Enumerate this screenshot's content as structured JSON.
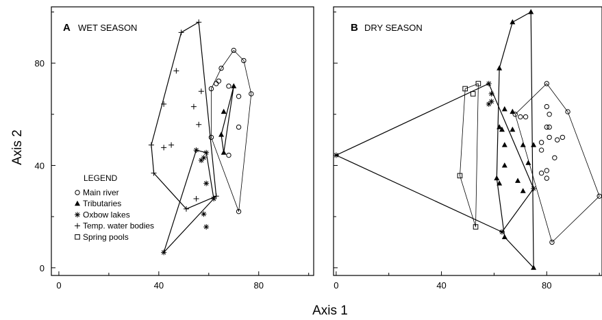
{
  "chart_data": [
    {
      "type": "scatter",
      "panel_letter": "A",
      "title": "WET SEASON",
      "xlabel": "Axis 1",
      "ylabel": "Axis 2",
      "xlim": [
        -3,
        102
      ],
      "ylim": [
        -3,
        102
      ],
      "xticks": [
        0,
        40,
        80
      ],
      "yticks": [
        0,
        40,
        80
      ],
      "legend": {
        "title": "LEGEND",
        "position": "lower-left",
        "entries": [
          {
            "marker": "circle",
            "label": "Main river"
          },
          {
            "marker": "triangle",
            "label": "Tributaries"
          },
          {
            "marker": "asterisk",
            "label": "Oxbow lakes"
          },
          {
            "marker": "plus",
            "label": "Temp. water bodies"
          },
          {
            "marker": "square",
            "label": "Spring pools"
          }
        ]
      },
      "series": [
        {
          "name": "Main river",
          "marker": "circle",
          "points": [
            [
              70,
              85
            ],
            [
              74,
              81
            ],
            [
              65,
              78
            ],
            [
              63,
              72
            ],
            [
              64,
              73
            ],
            [
              61,
              70
            ],
            [
              68,
              71
            ],
            [
              72,
              67
            ],
            [
              77,
              68
            ],
            [
              72,
              55
            ],
            [
              61,
              51
            ],
            [
              68,
              44
            ],
            [
              72,
              22
            ]
          ],
          "hull": [
            [
              70,
              85
            ],
            [
              74,
              81
            ],
            [
              77,
              68
            ],
            [
              72,
              22
            ],
            [
              61,
              51
            ],
            [
              61,
              70
            ],
            [
              65,
              78
            ]
          ]
        },
        {
          "name": "Tributaries",
          "marker": "triangle",
          "points": [
            [
              70,
              71
            ],
            [
              66,
              61
            ],
            [
              65,
              52
            ],
            [
              66,
              45
            ]
          ],
          "hull": [
            [
              70,
              71
            ],
            [
              66,
              45
            ],
            [
              65,
              52
            ]
          ]
        },
        {
          "name": "Oxbow lakes",
          "marker": "asterisk",
          "points": [
            [
              55,
              46
            ],
            [
              59,
              45
            ],
            [
              58,
              43
            ],
            [
              57,
              42
            ],
            [
              59,
              33
            ],
            [
              58,
              21
            ],
            [
              62,
              27
            ],
            [
              59,
              16
            ],
            [
              42,
              6
            ]
          ],
          "hull": [
            [
              55,
              46
            ],
            [
              59,
              45
            ],
            [
              62,
              27
            ],
            [
              42,
              6
            ]
          ]
        },
        {
          "name": "Temp. water bodies",
          "marker": "plus",
          "points": [
            [
              56,
              96
            ],
            [
              49,
              92
            ],
            [
              47,
              77
            ],
            [
              42,
              64
            ],
            [
              57,
              69
            ],
            [
              54,
              63
            ],
            [
              56,
              56
            ],
            [
              37,
              48
            ],
            [
              42,
              47
            ],
            [
              45,
              48
            ],
            [
              38,
              37
            ],
            [
              55,
              27
            ],
            [
              51,
              23
            ],
            [
              63,
              28
            ]
          ],
          "hull": [
            [
              56,
              96
            ],
            [
              63,
              28
            ],
            [
              51,
              23
            ],
            [
              38,
              37
            ],
            [
              37,
              48
            ],
            [
              49,
              92
            ]
          ]
        }
      ]
    },
    {
      "type": "scatter",
      "panel_letter": "B",
      "title": "DRY SEASON",
      "xlabel": "Axis 1",
      "ylabel": "",
      "xlim": [
        -1,
        101
      ],
      "ylim": [
        -3,
        102
      ],
      "xticks": [
        0,
        40,
        80
      ],
      "yticks": [
        0,
        40,
        80
      ],
      "series": [
        {
          "name": "Main river",
          "marker": "circle",
          "points": [
            [
              80,
              72
            ],
            [
              88,
              61
            ],
            [
              80,
              63
            ],
            [
              81,
              60
            ],
            [
              72,
              59
            ],
            [
              68,
              60
            ],
            [
              70,
              59
            ],
            [
              80,
              55
            ],
            [
              81,
              55
            ],
            [
              81,
              51
            ],
            [
              84,
              50
            ],
            [
              86,
              51
            ],
            [
              78,
              49
            ],
            [
              78,
              46
            ],
            [
              83,
              43
            ],
            [
              80,
              38
            ],
            [
              78,
              37
            ],
            [
              80,
              35
            ],
            [
              100,
              28
            ],
            [
              82,
              10
            ]
          ],
          "hull": [
            [
              80,
              72
            ],
            [
              88,
              61
            ],
            [
              100,
              28
            ],
            [
              82,
              10
            ],
            [
              68,
              60
            ]
          ]
        },
        {
          "name": "Tributaries",
          "marker": "triangle",
          "points": [
            [
              74,
              100
            ],
            [
              67,
              96
            ],
            [
              62,
              78
            ],
            [
              64,
              62
            ],
            [
              67,
              61
            ],
            [
              62,
              55
            ],
            [
              63,
              54
            ],
            [
              67,
              54
            ],
            [
              64,
              48
            ],
            [
              71,
              48
            ],
            [
              75,
              48
            ],
            [
              73,
              41
            ],
            [
              64,
              40
            ],
            [
              61,
              35
            ],
            [
              69,
              34
            ],
            [
              62,
              33
            ],
            [
              71,
              30
            ],
            [
              64,
              12
            ],
            [
              75,
              0
            ]
          ],
          "hull": [
            [
              74,
              100
            ],
            [
              75,
              0
            ],
            [
              64,
              12
            ],
            [
              61,
              35
            ],
            [
              62,
              78
            ],
            [
              67,
              96
            ]
          ]
        },
        {
          "name": "Oxbow lakes",
          "marker": "asterisk",
          "points": [
            [
              0,
              44
            ],
            [
              58,
              72
            ],
            [
              59,
              68
            ],
            [
              59,
              65
            ],
            [
              58,
              64
            ],
            [
              75,
              31
            ],
            [
              63,
              14
            ]
          ],
          "hull": [
            [
              0,
              44
            ],
            [
              58,
              72
            ],
            [
              75,
              31
            ],
            [
              63,
              14
            ]
          ]
        },
        {
          "name": "Spring pools",
          "marker": "square",
          "points": [
            [
              49,
              70
            ],
            [
              52,
              68
            ],
            [
              54,
              72
            ],
            [
              47,
              36
            ],
            [
              53,
              16
            ]
          ],
          "hull": [
            [
              54,
              72
            ],
            [
              49,
              70
            ],
            [
              47,
              36
            ],
            [
              53,
              16
            ]
          ]
        }
      ]
    }
  ]
}
